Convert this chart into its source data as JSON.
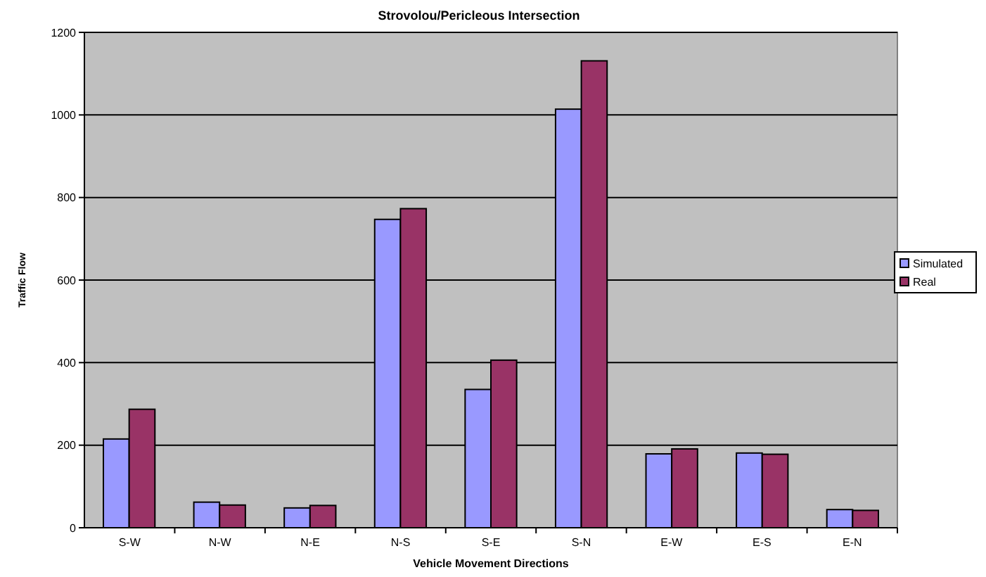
{
  "chart_data": {
    "type": "bar",
    "title": "Strovolou/Pericleous Intersection",
    "xlabel": "Vehicle Movement Directions",
    "ylabel": "Traffic Flow",
    "categories": [
      "S-W",
      "N-W",
      "N-E",
      "N-S",
      "S-E",
      "S-N",
      "E-W",
      "E-S",
      "E-N"
    ],
    "series": [
      {
        "name": "Simulated",
        "color": "#9999ff",
        "values": [
          215,
          62,
          48,
          747,
          335,
          1014,
          179,
          181,
          44
        ]
      },
      {
        "name": "Real",
        "color": "#993366",
        "values": [
          287,
          55,
          54,
          773,
          406,
          1131,
          191,
          178,
          42
        ]
      }
    ],
    "ylim": [
      0,
      1200
    ],
    "yticks": [
      0,
      200,
      400,
      600,
      800,
      1000,
      1200
    ],
    "grid": "y",
    "legend": "right"
  }
}
